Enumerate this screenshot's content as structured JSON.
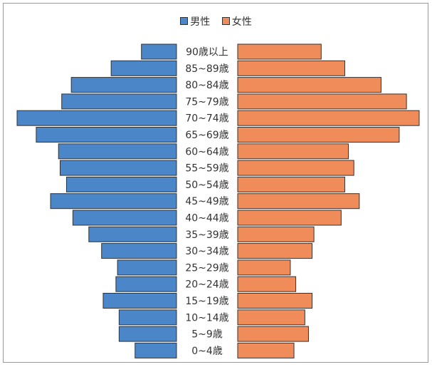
{
  "chart_data": {
    "type": "bar",
    "orientation": "horizontal-pyramid",
    "legend": [
      "男性",
      "女性"
    ],
    "legend_position": "top",
    "colors": {
      "male": "#4a86c8",
      "female": "#f08c5a",
      "border": "#333333"
    },
    "categories": [
      "90歳以上",
      "85~89歳",
      "80~84歳",
      "75~79歳",
      "70~74歳",
      "65~69歳",
      "60~64歳",
      "55~59歳",
      "50~54歳",
      "45~49歳",
      "40~44歳",
      "35~39歳",
      "30~34歳",
      "25~29歳",
      "20~24歳",
      "15~19歳",
      "10~14歳",
      "5~9歳",
      "0~4歳"
    ],
    "series": [
      {
        "name": "男性",
        "values": [
          22,
          41,
          66,
          72,
          100,
          88,
          74,
          73,
          69,
          79,
          65,
          55,
          47,
          37,
          38,
          46,
          36,
          36,
          26
        ]
      },
      {
        "name": "女性",
        "values": [
          46,
          59,
          79,
          93,
          100,
          89,
          61,
          64,
          59,
          67,
          57,
          42,
          41,
          29,
          32,
          41,
          37,
          39,
          31
        ]
      }
    ],
    "xlim": [
      0,
      100
    ]
  }
}
